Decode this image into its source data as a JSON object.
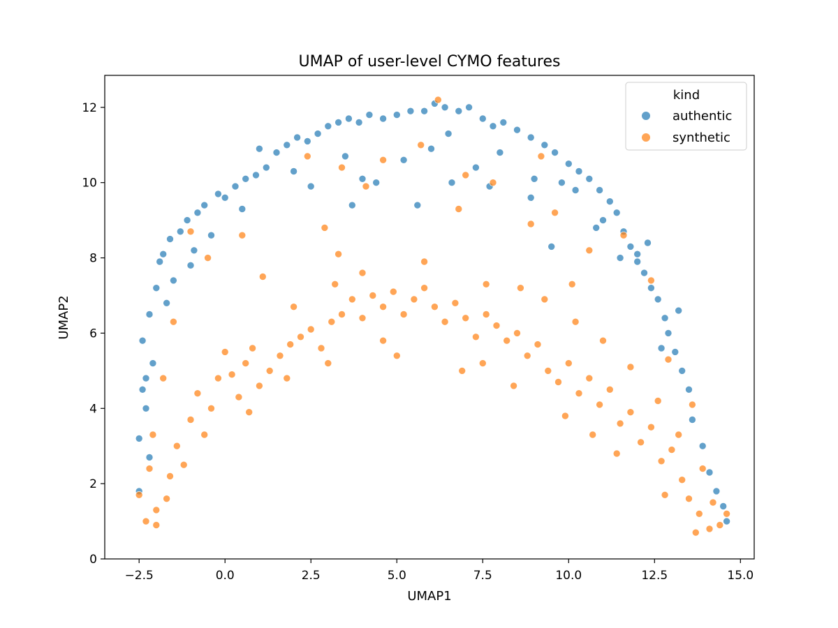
{
  "chart_data": {
    "type": "scatter",
    "title": "UMAP of user-level CYMO features",
    "xlabel": "UMAP1",
    "ylabel": "UMAP2",
    "xlim": [
      -3.5,
      15.4
    ],
    "ylim": [
      0,
      12.85
    ],
    "x_ticks": [
      -2.5,
      0.0,
      2.5,
      5.0,
      7.5,
      10.0,
      12.5,
      15.0
    ],
    "x_tick_labels": [
      "−2.5",
      "0.0",
      "2.5",
      "5.0",
      "7.5",
      "10.0",
      "12.5",
      "15.0"
    ],
    "y_ticks": [
      0,
      2,
      4,
      6,
      8,
      10,
      12
    ],
    "y_tick_labels": [
      "0",
      "2",
      "4",
      "6",
      "8",
      "10",
      "12"
    ],
    "grid": false,
    "legend": {
      "title": "kind",
      "placement": "top-right"
    },
    "series": [
      {
        "name": "authentic",
        "color": "#1f77b4",
        "points": [
          [
            -2.5,
            1.8
          ],
          [
            -2.5,
            3.2
          ],
          [
            -2.4,
            4.5
          ],
          [
            -2.4,
            5.8
          ],
          [
            -2.3,
            4.0
          ],
          [
            -2.2,
            6.5
          ],
          [
            -2.1,
            5.2
          ],
          [
            -2.0,
            7.2
          ],
          [
            -1.9,
            7.9
          ],
          [
            -1.8,
            8.1
          ],
          [
            -1.6,
            8.5
          ],
          [
            -1.5,
            7.4
          ],
          [
            -1.3,
            8.7
          ],
          [
            -1.1,
            9.0
          ],
          [
            -1.0,
            7.8
          ],
          [
            -0.8,
            9.2
          ],
          [
            -0.6,
            9.4
          ],
          [
            -0.4,
            8.6
          ],
          [
            -0.2,
            9.7
          ],
          [
            0.0,
            9.6
          ],
          [
            0.3,
            9.9
          ],
          [
            0.6,
            10.1
          ],
          [
            0.9,
            10.2
          ],
          [
            1.2,
            10.4
          ],
          [
            1.5,
            10.8
          ],
          [
            1.8,
            11.0
          ],
          [
            2.1,
            11.2
          ],
          [
            2.4,
            11.1
          ],
          [
            2.7,
            11.3
          ],
          [
            3.0,
            11.5
          ],
          [
            3.3,
            11.6
          ],
          [
            3.6,
            11.7
          ],
          [
            3.9,
            11.6
          ],
          [
            4.2,
            11.8
          ],
          [
            4.6,
            11.7
          ],
          [
            5.0,
            11.8
          ],
          [
            5.4,
            11.9
          ],
          [
            5.8,
            11.9
          ],
          [
            6.1,
            12.1
          ],
          [
            6.4,
            12.0
          ],
          [
            6.8,
            11.9
          ],
          [
            7.1,
            12.0
          ],
          [
            7.5,
            11.7
          ],
          [
            7.8,
            11.5
          ],
          [
            8.1,
            11.6
          ],
          [
            8.5,
            11.4
          ],
          [
            8.9,
            11.2
          ],
          [
            9.3,
            11.0
          ],
          [
            9.6,
            10.8
          ],
          [
            10.0,
            10.5
          ],
          [
            10.3,
            10.3
          ],
          [
            10.6,
            10.1
          ],
          [
            10.9,
            9.8
          ],
          [
            11.2,
            9.5
          ],
          [
            11.4,
            9.2
          ],
          [
            11.6,
            8.7
          ],
          [
            11.8,
            8.3
          ],
          [
            12.0,
            7.9
          ],
          [
            12.2,
            7.6
          ],
          [
            12.4,
            7.2
          ],
          [
            12.6,
            6.9
          ],
          [
            12.8,
            6.4
          ],
          [
            12.9,
            6.0
          ],
          [
            13.1,
            5.5
          ],
          [
            13.3,
            5.0
          ],
          [
            13.5,
            4.5
          ],
          [
            13.6,
            3.7
          ],
          [
            13.9,
            3.0
          ],
          [
            14.1,
            2.3
          ],
          [
            14.3,
            1.8
          ],
          [
            14.5,
            1.4
          ],
          [
            14.6,
            1.0
          ],
          [
            1.0,
            10.9
          ],
          [
            2.0,
            10.3
          ],
          [
            3.5,
            10.7
          ],
          [
            4.0,
            10.1
          ],
          [
            5.2,
            10.6
          ],
          [
            6.0,
            10.9
          ],
          [
            6.5,
            11.3
          ],
          [
            7.3,
            10.4
          ],
          [
            8.0,
            10.8
          ],
          [
            9.0,
            10.1
          ],
          [
            10.2,
            9.8
          ],
          [
            11.0,
            9.0
          ],
          [
            11.5,
            8.0
          ],
          [
            12.3,
            8.4
          ],
          [
            12.7,
            5.6
          ],
          [
            13.2,
            6.6
          ],
          [
            -0.9,
            8.2
          ],
          [
            -1.7,
            6.8
          ],
          [
            -2.2,
            2.7
          ],
          [
            -2.3,
            4.8
          ],
          [
            0.5,
            9.3
          ],
          [
            3.7,
            9.4
          ],
          [
            5.6,
            9.4
          ],
          [
            7.7,
            9.9
          ],
          [
            8.9,
            9.6
          ],
          [
            9.5,
            8.3
          ],
          [
            10.8,
            8.8
          ],
          [
            12.0,
            8.1
          ],
          [
            4.4,
            10.0
          ],
          [
            6.6,
            10.0
          ],
          [
            9.8,
            10.0
          ],
          [
            2.5,
            9.9
          ]
        ]
      },
      {
        "name": "synthetic",
        "color": "#ff7f0e",
        "points": [
          [
            -2.5,
            1.7
          ],
          [
            -2.3,
            1.0
          ],
          [
            -2.2,
            2.4
          ],
          [
            -2.1,
            3.3
          ],
          [
            -2.0,
            1.3
          ],
          [
            -1.8,
            4.8
          ],
          [
            -1.6,
            2.2
          ],
          [
            -1.4,
            3.0
          ],
          [
            -1.2,
            2.5
          ],
          [
            -1.0,
            3.7
          ],
          [
            -0.8,
            4.4
          ],
          [
            -0.6,
            3.3
          ],
          [
            -0.4,
            4.0
          ],
          [
            -0.2,
            4.8
          ],
          [
            0.0,
            5.5
          ],
          [
            0.2,
            4.9
          ],
          [
            0.4,
            4.3
          ],
          [
            0.6,
            5.2
          ],
          [
            0.8,
            5.6
          ],
          [
            1.0,
            4.6
          ],
          [
            1.3,
            5.0
          ],
          [
            1.6,
            5.4
          ],
          [
            1.9,
            5.7
          ],
          [
            2.2,
            5.9
          ],
          [
            2.5,
            6.1
          ],
          [
            2.8,
            5.6
          ],
          [
            3.1,
            6.3
          ],
          [
            3.4,
            6.5
          ],
          [
            3.7,
            6.9
          ],
          [
            4.0,
            6.4
          ],
          [
            4.3,
            7.0
          ],
          [
            4.6,
            6.7
          ],
          [
            4.9,
            7.1
          ],
          [
            5.2,
            6.5
          ],
          [
            5.5,
            6.9
          ],
          [
            5.8,
            7.2
          ],
          [
            6.1,
            6.7
          ],
          [
            6.4,
            6.3
          ],
          [
            6.7,
            6.8
          ],
          [
            7.0,
            6.4
          ],
          [
            7.3,
            5.9
          ],
          [
            7.6,
            6.5
          ],
          [
            7.9,
            6.2
          ],
          [
            8.2,
            5.8
          ],
          [
            8.5,
            6.0
          ],
          [
            8.8,
            5.4
          ],
          [
            9.1,
            5.7
          ],
          [
            9.4,
            5.0
          ],
          [
            9.7,
            4.7
          ],
          [
            10.0,
            5.2
          ],
          [
            10.3,
            4.4
          ],
          [
            10.6,
            4.8
          ],
          [
            10.9,
            4.1
          ],
          [
            11.2,
            4.5
          ],
          [
            11.5,
            3.6
          ],
          [
            11.8,
            3.9
          ],
          [
            12.1,
            3.1
          ],
          [
            12.4,
            3.5
          ],
          [
            12.7,
            2.6
          ],
          [
            13.0,
            2.9
          ],
          [
            13.3,
            2.1
          ],
          [
            13.5,
            1.6
          ],
          [
            13.8,
            1.2
          ],
          [
            14.1,
            0.8
          ],
          [
            14.4,
            0.9
          ],
          [
            14.6,
            1.2
          ],
          [
            13.9,
            2.4
          ],
          [
            13.2,
            3.3
          ],
          [
            12.6,
            4.2
          ],
          [
            11.8,
            5.1
          ],
          [
            11.0,
            5.8
          ],
          [
            10.2,
            6.3
          ],
          [
            9.3,
            6.9
          ],
          [
            8.6,
            7.2
          ],
          [
            7.6,
            7.3
          ],
          [
            5.8,
            7.9
          ],
          [
            4.0,
            7.6
          ],
          [
            3.2,
            7.3
          ],
          [
            2.0,
            6.7
          ],
          [
            1.1,
            7.5
          ],
          [
            0.5,
            8.6
          ],
          [
            -0.5,
            8.0
          ],
          [
            -1.0,
            8.7
          ],
          [
            -1.5,
            6.3
          ],
          [
            2.9,
            8.8
          ],
          [
            3.3,
            8.1
          ],
          [
            4.1,
            9.9
          ],
          [
            5.7,
            11.0
          ],
          [
            6.2,
            12.2
          ],
          [
            7.0,
            10.2
          ],
          [
            7.8,
            10.0
          ],
          [
            9.2,
            10.7
          ],
          [
            10.1,
            7.3
          ],
          [
            10.6,
            8.2
          ],
          [
            11.6,
            8.6
          ],
          [
            12.4,
            7.4
          ],
          [
            2.4,
            10.7
          ],
          [
            3.4,
            10.4
          ],
          [
            4.6,
            10.6
          ],
          [
            6.8,
            9.3
          ],
          [
            8.9,
            8.9
          ],
          [
            9.6,
            9.2
          ],
          [
            12.9,
            5.3
          ],
          [
            13.6,
            4.1
          ],
          [
            -2.0,
            0.9
          ],
          [
            -1.7,
            1.6
          ],
          [
            0.7,
            3.9
          ],
          [
            1.8,
            4.8
          ],
          [
            3.0,
            5.2
          ],
          [
            5.0,
            5.4
          ],
          [
            6.9,
            5.0
          ],
          [
            8.4,
            4.6
          ],
          [
            9.9,
            3.8
          ],
          [
            11.4,
            2.8
          ],
          [
            12.8,
            1.7
          ],
          [
            13.7,
            0.7
          ],
          [
            14.2,
            1.5
          ],
          [
            10.7,
            3.3
          ],
          [
            7.5,
            5.2
          ],
          [
            4.6,
            5.8
          ]
        ]
      }
    ]
  }
}
